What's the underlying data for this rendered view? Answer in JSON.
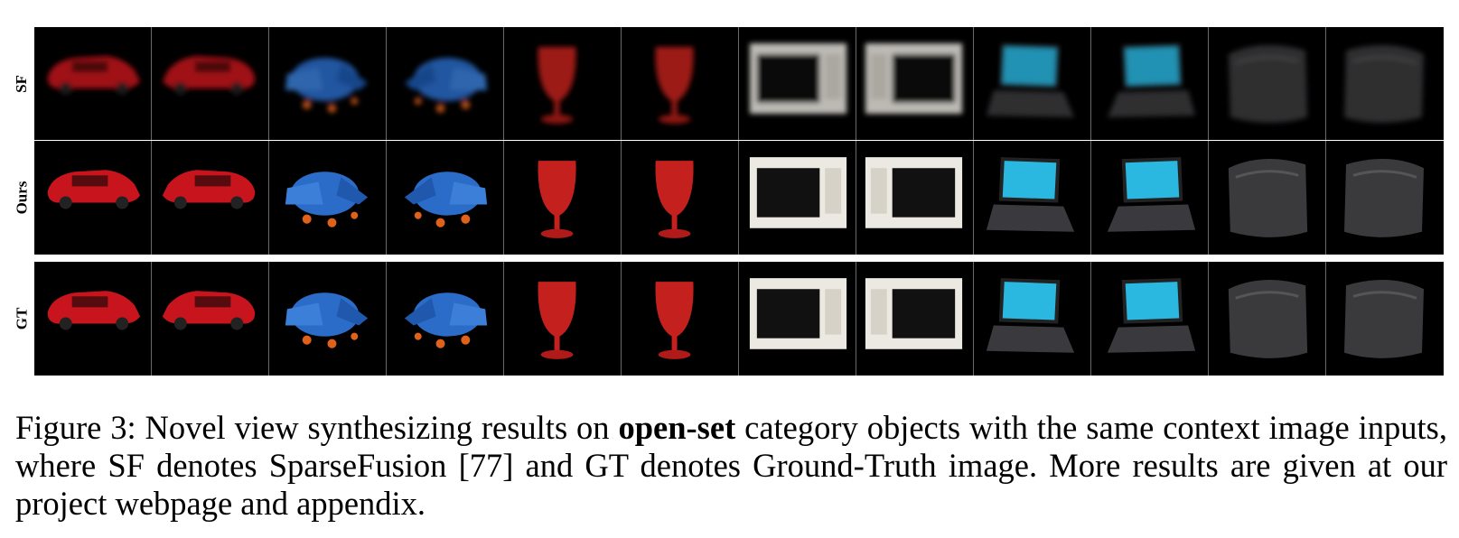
{
  "figure": {
    "row_labels": [
      "SF",
      "Ours",
      "GT"
    ],
    "objects": [
      "red-car",
      "red-car",
      "blue-airplane",
      "blue-airplane",
      "red-wine-glass",
      "red-wine-glass",
      "microwave",
      "microwave",
      "laptop",
      "laptop",
      "dark-bag",
      "dark-bag"
    ]
  },
  "caption": {
    "prefix": "Figure 3: Novel view synthesizing results on ",
    "bold": "open-set",
    "suffix": " category objects with the same context image inputs, where SF denotes SparseFusion [77] and GT denotes Ground-Truth image. More results are given at our project webpage and appendix."
  }
}
